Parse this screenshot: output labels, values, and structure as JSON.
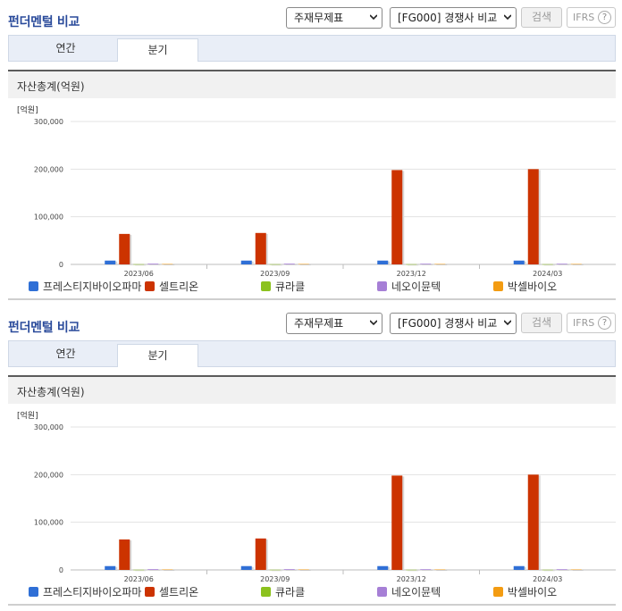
{
  "panels": [
    {
      "title": "펀더멘털 비교",
      "select_statement": "주재무제표",
      "select_compare": "[FG000] 경쟁사 비교",
      "search_button": "검색",
      "ifrs_button": "IFRS",
      "help_glyph": "?",
      "tabs": [
        "연간",
        "분기"
      ],
      "active_tab": "분기",
      "section_title": "자산총계(억원)"
    },
    {
      "title": "펀더멘털 비교",
      "select_statement": "주재무제표",
      "select_compare": "[FG000] 경쟁사 비교",
      "search_button": "검색",
      "ifrs_button": "IFRS",
      "help_glyph": "?",
      "tabs": [
        "연간",
        "분기"
      ],
      "active_tab": "분기",
      "section_title": "자산총계(억원)"
    }
  ],
  "chart_data": [
    {
      "type": "bar",
      "unit_label": "[억원]",
      "categories": [
        "2023/06",
        "2023/09",
        "2023/12",
        "2024/03"
      ],
      "ylim": [
        0,
        300000
      ],
      "yticks": [
        "0",
        "100,000",
        "200,000",
        "300,000"
      ],
      "ytick_values": [
        0,
        100000,
        200000,
        300000
      ],
      "grid": true,
      "legend_position": "bottom",
      "series": [
        {
          "name": "프레스티지바이오파마",
          "color": "#2f6fd6",
          "values": [
            8000,
            8000,
            8000,
            8000
          ]
        },
        {
          "name": "셀트리온",
          "color": "#cc3300",
          "values": [
            64000,
            66000,
            198000,
            200000
          ]
        },
        {
          "name": "큐라클",
          "color": "#8cc21e",
          "values": [
            400,
            400,
            400,
            400
          ]
        },
        {
          "name": "네오이뮨텍",
          "color": "#a67fd6",
          "values": [
            1500,
            1500,
            1400,
            1400
          ]
        },
        {
          "name": "박셀바이오",
          "color": "#f39c12",
          "values": [
            900,
            900,
            900,
            900
          ]
        }
      ]
    },
    {
      "type": "bar",
      "unit_label": "[억원]",
      "categories": [
        "2023/06",
        "2023/09",
        "2023/12",
        "2024/03"
      ],
      "ylim": [
        0,
        300000
      ],
      "yticks": [
        "0",
        "100,000",
        "200,000",
        "300,000"
      ],
      "ytick_values": [
        0,
        100000,
        200000,
        300000
      ],
      "grid": true,
      "legend_position": "bottom",
      "series": [
        {
          "name": "프레스티지바이오파마",
          "color": "#2f6fd6",
          "values": [
            8000,
            8000,
            8000,
            8000
          ]
        },
        {
          "name": "셀트리온",
          "color": "#cc3300",
          "values": [
            64000,
            66000,
            198000,
            200000
          ]
        },
        {
          "name": "큐라클",
          "color": "#8cc21e",
          "values": [
            400,
            400,
            400,
            400
          ]
        },
        {
          "name": "네오이뮨텍",
          "color": "#a67fd6",
          "values": [
            1500,
            1500,
            1400,
            1400
          ]
        },
        {
          "name": "박셀바이오",
          "color": "#f39c12",
          "values": [
            900,
            900,
            900,
            900
          ]
        }
      ]
    }
  ]
}
